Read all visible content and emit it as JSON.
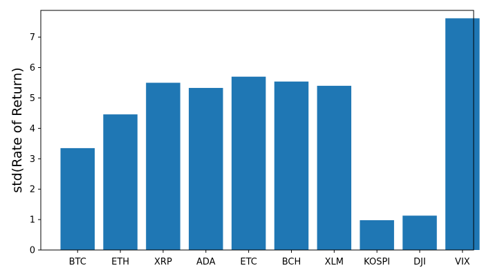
{
  "chart_data": {
    "type": "bar",
    "title": "",
    "xlabel": "",
    "ylabel": "std(Rate of Return)",
    "categories": [
      "BTC",
      "ETH",
      "XRP",
      "ADA",
      "ETC",
      "BCH",
      "XLM",
      "KOSPI",
      "DJI",
      "VIX"
    ],
    "values": [
      3.35,
      4.46,
      5.5,
      5.33,
      5.7,
      5.54,
      5.4,
      0.98,
      1.13,
      7.62
    ],
    "ylim": [
      0,
      7.88
    ],
    "yticks": [
      0,
      1,
      2,
      3,
      4,
      5,
      6,
      7
    ],
    "grid": false,
    "legend": "none",
    "bar_color": "#1f77b4"
  }
}
